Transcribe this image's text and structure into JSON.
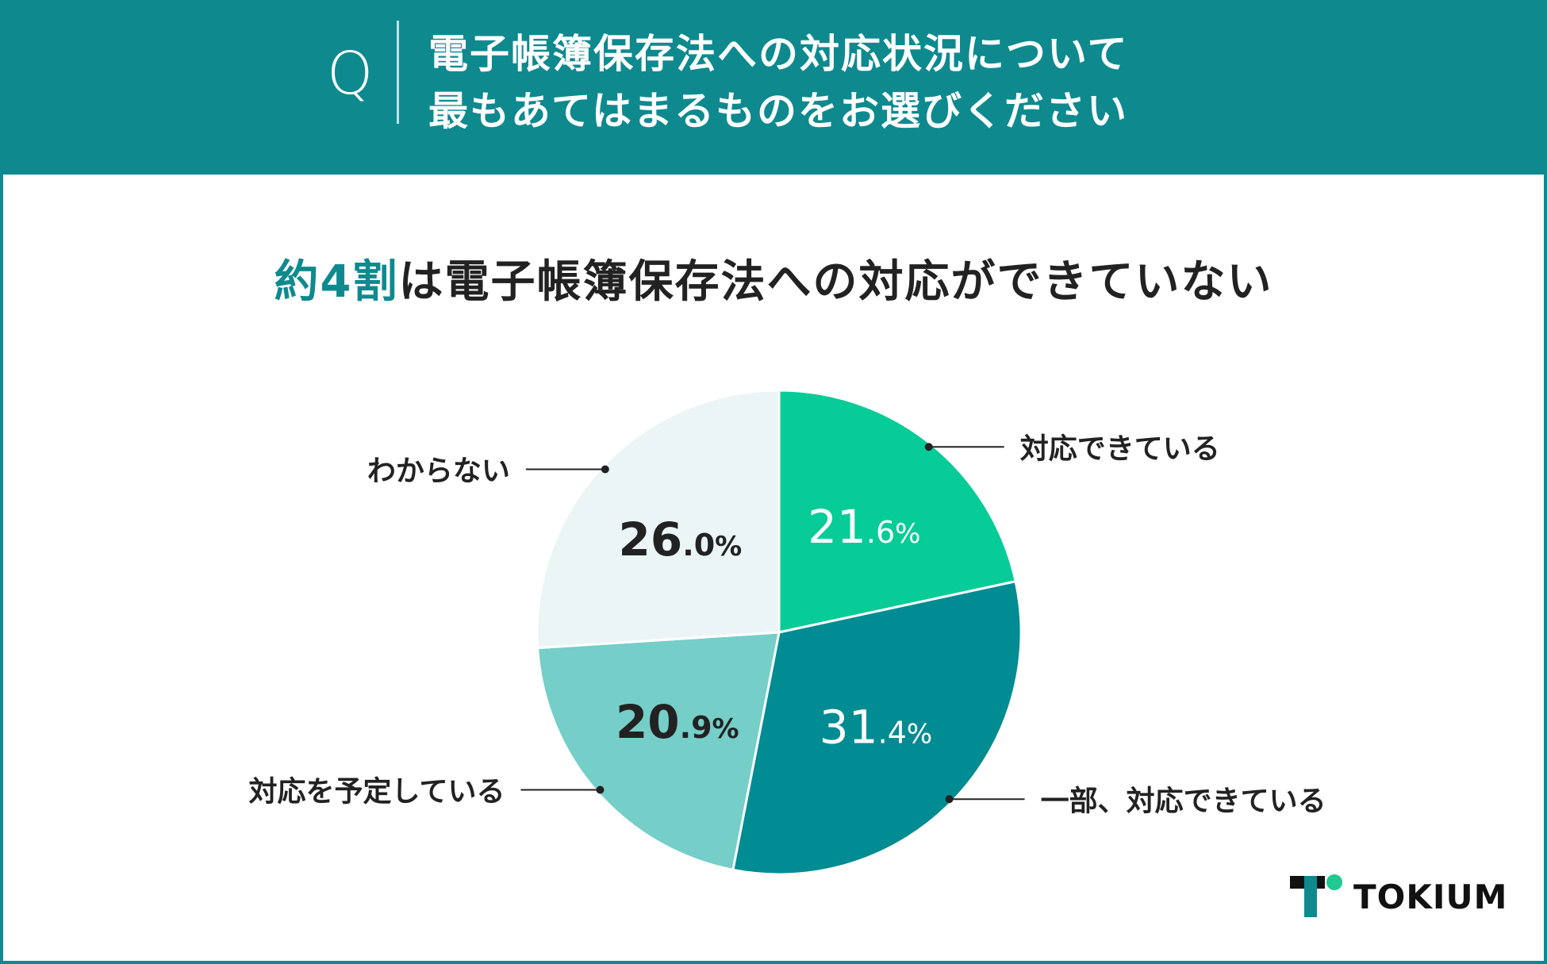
{
  "header": {
    "q_mark": "Q",
    "title_line1": "電子帳簿保存法への対応状況について",
    "title_line2": "最もあてはまるものをお選びください"
  },
  "headline": {
    "highlight": "約4割",
    "rest": "は電子帳簿保存法への対応ができていない"
  },
  "brand": {
    "name": "TOKIUM"
  },
  "colors": {
    "header_bg": "#0e8a8f",
    "accent": "#0e8a8f",
    "logo_dot": "#1fc98f"
  },
  "chart_data": {
    "type": "pie",
    "unit": "%",
    "start_angle_deg": 0,
    "direction": "clockwise",
    "slices": [
      {
        "label": "対応できている",
        "value": 21.6,
        "int": "21",
        "dec": ".6",
        "pct": "%",
        "color": "#07cc98",
        "text_color": "#ffffff",
        "label_side": "right"
      },
      {
        "label": "一部、対応できている",
        "value": 31.4,
        "int": "31",
        "dec": ".4",
        "pct": "%",
        "color": "#008c92",
        "text_color": "#ffffff",
        "label_side": "right"
      },
      {
        "label": "対応を予定している",
        "value": 20.9,
        "int": "20",
        "dec": ".9",
        "pct": "%",
        "color": "#75cec8",
        "text_color": "#222222",
        "label_side": "left"
      },
      {
        "label": "わからない",
        "value": 26.0,
        "int": "26",
        "dec": ".0",
        "pct": "%",
        "color": "#ebf5f6",
        "text_color": "#222222",
        "label_side": "left"
      }
    ]
  }
}
